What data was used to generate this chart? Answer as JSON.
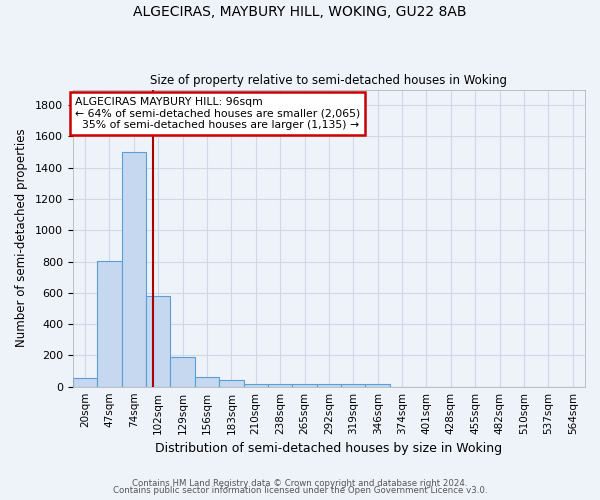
{
  "title": "ALGECIRAS, MAYBURY HILL, WOKING, GU22 8AB",
  "subtitle": "Size of property relative to semi-detached houses in Woking",
  "xlabel": "Distribution of semi-detached houses by size in Woking",
  "ylabel": "Number of semi-detached properties",
  "footer1": "Contains HM Land Registry data © Crown copyright and database right 2024.",
  "footer2": "Contains public sector information licensed under the Open Government Licence v3.0.",
  "categories": [
    "20sqm",
    "47sqm",
    "74sqm",
    "102sqm",
    "129sqm",
    "156sqm",
    "183sqm",
    "210sqm",
    "238sqm",
    "265sqm",
    "292sqm",
    "319sqm",
    "346sqm",
    "374sqm",
    "401sqm",
    "428sqm",
    "455sqm",
    "482sqm",
    "510sqm",
    "537sqm",
    "564sqm"
  ],
  "values": [
    55,
    805,
    1500,
    580,
    190,
    62,
    43,
    20,
    15,
    15,
    15,
    20,
    15,
    0,
    0,
    0,
    0,
    0,
    0,
    0,
    0
  ],
  "bar_color": "#c5d8f0",
  "bar_edge_color": "#5a9fd4",
  "grid_color": "#d0d8e8",
  "background_color": "#eef3fa",
  "property_size": 96,
  "property_label": "ALGECIRAS MAYBURY HILL: 96sqm",
  "percent_smaller": 64,
  "count_smaller": 2065,
  "percent_larger": 35,
  "count_larger": 1135,
  "vline_color": "#aa0000",
  "annotation_box_color": "#ffffff",
  "annotation_box_edge": "#cc0000",
  "ylim": [
    0,
    1900
  ],
  "yticks": [
    0,
    200,
    400,
    600,
    800,
    1000,
    1200,
    1400,
    1600,
    1800
  ],
  "vline_x_index": 2.79
}
